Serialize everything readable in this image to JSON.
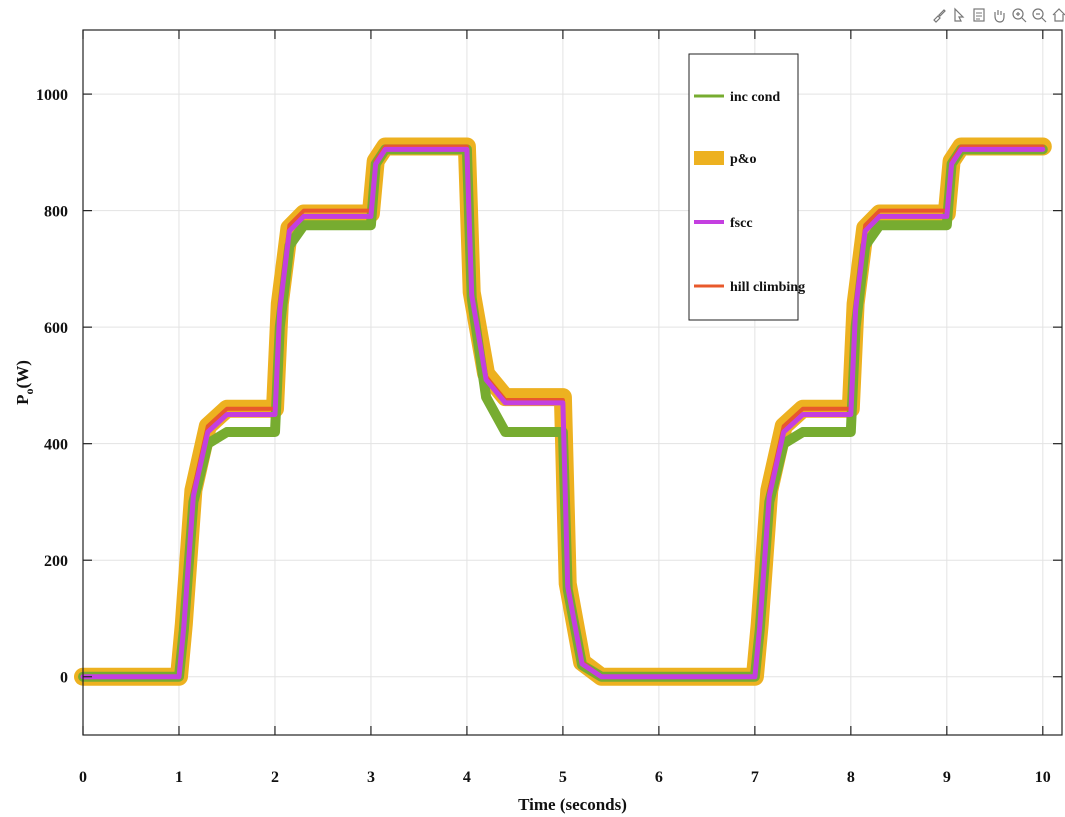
{
  "toolbar": {
    "icons": [
      "brush-icon",
      "data-cursor-icon",
      "export-icon",
      "pan-hand-icon",
      "zoom-in-icon",
      "zoom-out-icon",
      "home-icon"
    ]
  },
  "chart_data": {
    "type": "line",
    "title": "",
    "xlabel": "Time (seconds)",
    "ylabel_main": "P",
    "ylabel_sub": "o",
    "ylabel_unit": "(W)",
    "xlim": [
      0,
      10.2
    ],
    "ylim": [
      -100,
      1110
    ],
    "xticks": [
      0,
      1,
      2,
      3,
      4,
      5,
      6,
      7,
      8,
      9,
      10
    ],
    "yticks": [
      0,
      200,
      400,
      600,
      800,
      1000
    ],
    "grid": true,
    "legend_position": "top-right",
    "series": [
      {
        "name": "inc cond",
        "color": "#77ac30",
        "x": [
          0,
          1.0,
          1.05,
          1.15,
          1.3,
          1.5,
          2.0,
          2.05,
          2.15,
          2.3,
          3.0,
          3.05,
          3.15,
          4.0,
          4.05,
          4.2,
          4.4,
          5.0,
          5.05,
          5.2,
          5.4,
          7.0,
          7.05,
          7.15,
          7.3,
          7.5,
          8.0,
          8.05,
          8.15,
          8.3,
          9.0,
          9.05,
          9.15,
          10.0
        ],
        "y": [
          0,
          0,
          80,
          300,
          400,
          420,
          420,
          600,
          740,
          775,
          775,
          880,
          905,
          905,
          650,
          480,
          420,
          420,
          150,
          20,
          0,
          0,
          80,
          300,
          400,
          420,
          420,
          600,
          740,
          775,
          775,
          880,
          905,
          905
        ]
      },
      {
        "name": "p&o",
        "color": "#edb120",
        "x": [
          0,
          1.0,
          1.05,
          1.15,
          1.3,
          1.5,
          2.0,
          2.05,
          2.15,
          2.3,
          3.0,
          3.05,
          3.15,
          4.0,
          4.05,
          4.2,
          4.4,
          5.0,
          5.05,
          5.2,
          5.4,
          7.0,
          7.05,
          7.15,
          7.3,
          7.5,
          8.0,
          8.05,
          8.15,
          8.3,
          9.0,
          9.05,
          9.15,
          10.0
        ],
        "y": [
          0,
          0,
          90,
          320,
          430,
          460,
          460,
          640,
          770,
          795,
          795,
          885,
          910,
          910,
          660,
          520,
          480,
          480,
          160,
          25,
          0,
          0,
          90,
          320,
          430,
          460,
          460,
          640,
          770,
          795,
          795,
          885,
          910,
          910
        ]
      },
      {
        "name": "fscc",
        "color": "#c43fe0",
        "x": [
          0,
          1.0,
          1.05,
          1.15,
          1.3,
          1.5,
          2.0,
          2.05,
          2.15,
          2.3,
          3.0,
          3.05,
          3.15,
          4.0,
          4.05,
          4.2,
          4.4,
          5.0,
          5.05,
          5.2,
          5.4,
          7.0,
          7.05,
          7.15,
          7.3,
          7.5,
          8.0,
          8.05,
          8.15,
          8.3,
          9.0,
          9.05,
          9.15,
          10.0
        ],
        "y": [
          0,
          0,
          85,
          310,
          420,
          450,
          450,
          630,
          765,
          790,
          790,
          880,
          905,
          905,
          655,
          510,
          470,
          470,
          155,
          22,
          0,
          0,
          85,
          310,
          420,
          450,
          450,
          630,
          765,
          790,
          790,
          880,
          905,
          905
        ]
      },
      {
        "name": "hill climbing",
        "color": "#e8592b",
        "x": [
          0,
          1.0,
          1.05,
          1.15,
          1.3,
          1.5,
          2.0,
          2.05,
          2.15,
          2.3,
          3.0,
          3.05,
          3.15,
          4.0,
          4.05,
          4.2,
          4.4,
          5.0,
          5.05,
          5.2,
          5.4,
          7.0,
          7.05,
          7.15,
          7.3,
          7.5,
          8.0,
          8.05,
          8.15,
          8.3,
          9.0,
          9.05,
          9.15,
          10.0
        ],
        "y": [
          0,
          0,
          90,
          320,
          430,
          460,
          460,
          640,
          775,
          800,
          800,
          885,
          910,
          910,
          660,
          515,
          475,
          475,
          160,
          25,
          0,
          0,
          90,
          320,
          430,
          460,
          460,
          640,
          775,
          800,
          800,
          885,
          910,
          910
        ]
      }
    ]
  }
}
